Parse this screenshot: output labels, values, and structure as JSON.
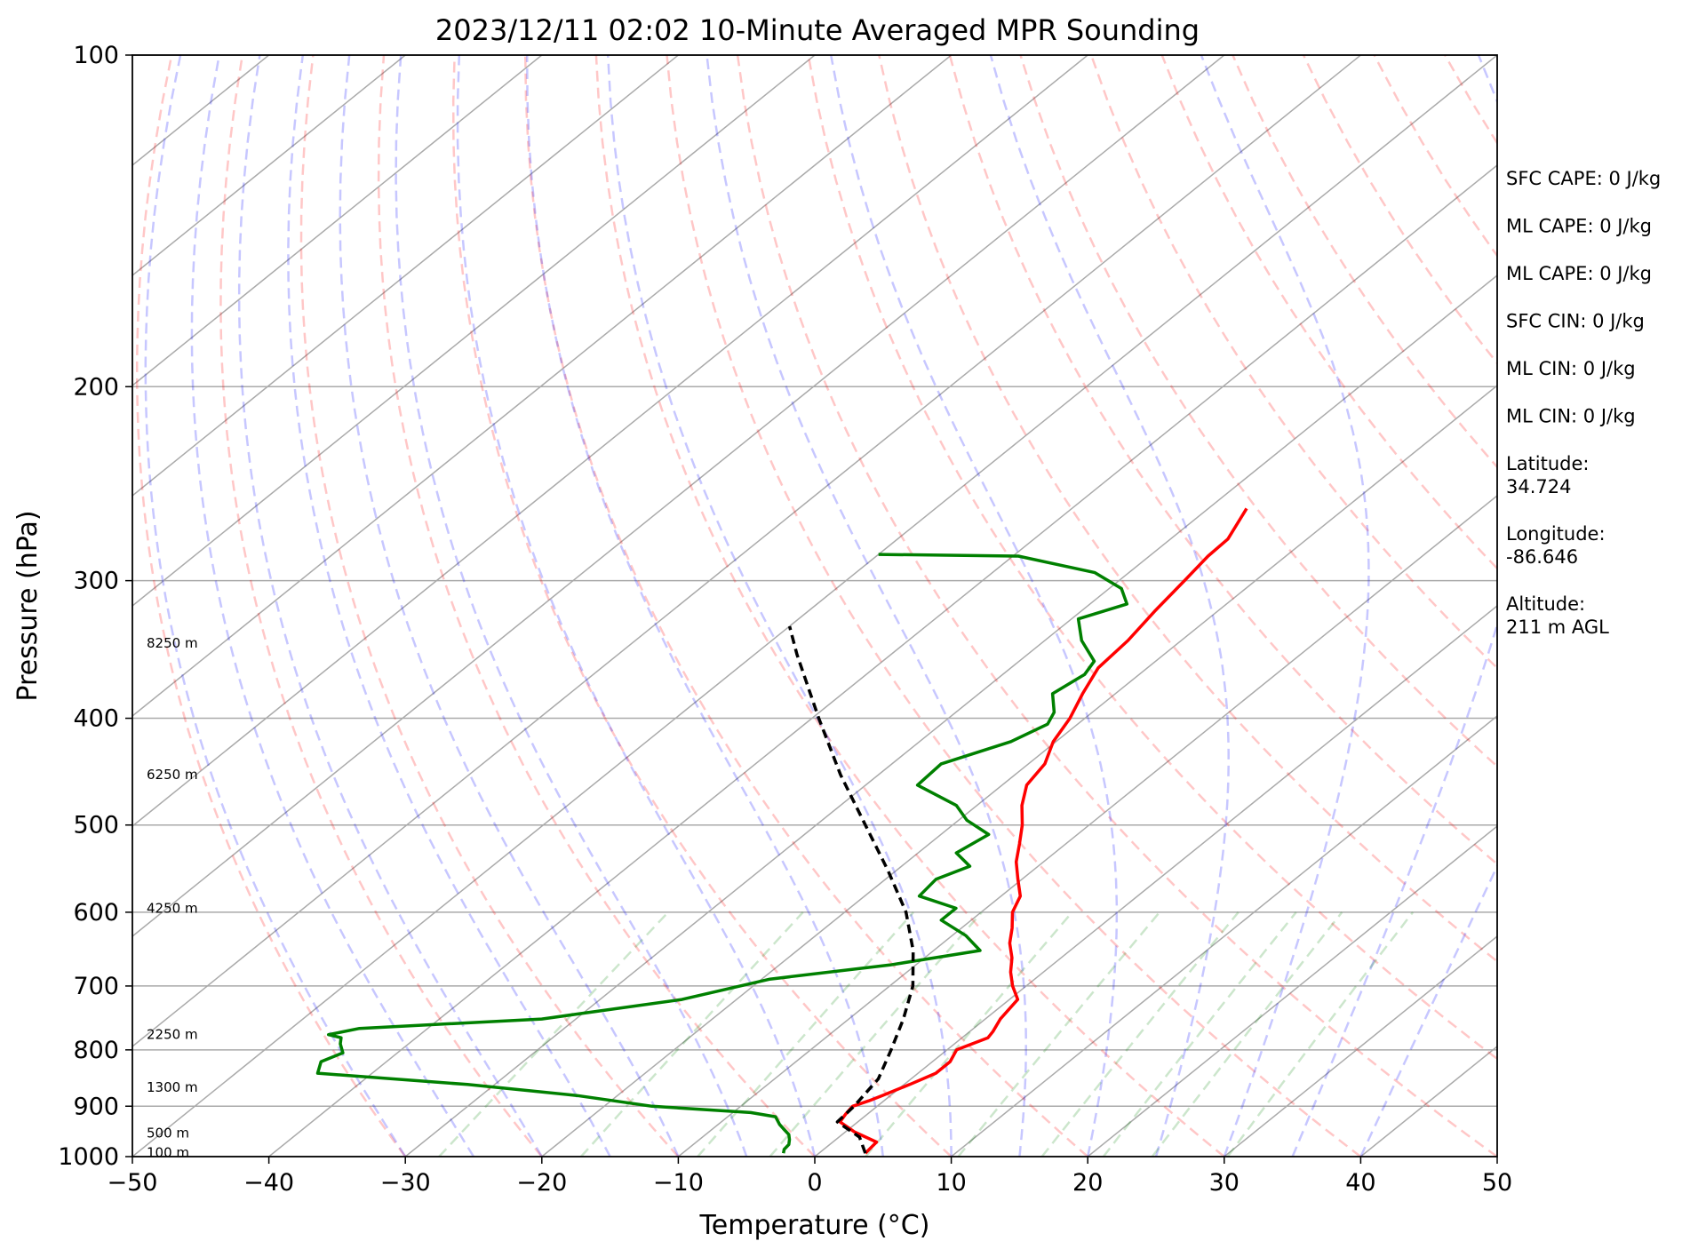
{
  "chart_data": {
    "type": "line",
    "title": "2023/12/11 02:02 10-Minute Averaged MPR Sounding",
    "xlabel": "Temperature (°C)",
    "ylabel": "Pressure (hPa)",
    "xlim": [
      -50,
      50
    ],
    "ylim": [
      1000,
      100
    ],
    "yscale": "log",
    "grid": true,
    "xticks": [
      "−50",
      "−40",
      "−30",
      "−20",
      "−10",
      "0",
      "10",
      "20",
      "30",
      "40",
      "50"
    ],
    "yticks": [
      {
        "p": 100,
        "label": "100"
      },
      {
        "p": 200,
        "label": "200"
      },
      {
        "p": 300,
        "label": "300"
      },
      {
        "p": 400,
        "label": "400"
      },
      {
        "p": 500,
        "label": "500"
      },
      {
        "p": 600,
        "label": "600"
      },
      {
        "p": 700,
        "label": "700"
      },
      {
        "p": 800,
        "label": "800"
      },
      {
        "p": 900,
        "label": "900"
      },
      {
        "p": 1000,
        "label": "1000"
      }
    ],
    "height_labels": [
      {
        "p": 342,
        "label": "8250 m"
      },
      {
        "p": 450,
        "label": "6250 m"
      },
      {
        "p": 595,
        "label": "4250 m"
      },
      {
        "p": 775,
        "label": "2250 m"
      },
      {
        "p": 865,
        "label": "1300 m"
      },
      {
        "p": 952,
        "label": "500 m"
      },
      {
        "p": 992,
        "label": "100 m"
      }
    ],
    "series": [
      {
        "color": "#ff0000",
        "points": [
          [
            993,
            3.4
          ],
          [
            970,
            3.2
          ],
          [
            950,
            0.7
          ],
          [
            930,
            -1.3
          ],
          [
            915,
            -1.6
          ],
          [
            900,
            -1.8
          ],
          [
            890,
            -1.1
          ],
          [
            880,
            -0.6
          ],
          [
            860,
            0.4
          ],
          [
            840,
            1.3
          ],
          [
            820,
            1.3
          ],
          [
            800,
            0.7
          ],
          [
            780,
            1.9
          ],
          [
            770,
            1.7
          ],
          [
            750,
            1.1
          ],
          [
            720,
            0.6
          ],
          [
            700,
            -1.0
          ],
          [
            680,
            -2.4
          ],
          [
            660,
            -3.6
          ],
          [
            640,
            -5.1
          ],
          [
            620,
            -6.3
          ],
          [
            600,
            -7.7
          ],
          [
            580,
            -8.6
          ],
          [
            560,
            -10.3
          ],
          [
            540,
            -12.0
          ],
          [
            520,
            -13.4
          ],
          [
            500,
            -14.9
          ],
          [
            480,
            -16.7
          ],
          [
            460,
            -18.2
          ],
          [
            440,
            -18.8
          ],
          [
            420,
            -20.2
          ],
          [
            400,
            -21.1
          ],
          [
            380,
            -22.4
          ],
          [
            360,
            -23.6
          ],
          [
            340,
            -23.9
          ],
          [
            320,
            -24.6
          ],
          [
            300,
            -25.2
          ],
          [
            285,
            -25.7
          ],
          [
            275,
            -25.8
          ],
          [
            258,
            -27.2
          ]
        ]
      },
      {
        "color": "#008000",
        "points": [
          [
            993,
            -2.6
          ],
          [
            985,
            -2.9
          ],
          [
            975,
            -3.0
          ],
          [
            965,
            -3.4
          ],
          [
            955,
            -3.9
          ],
          [
            945,
            -4.7
          ],
          [
            935,
            -5.5
          ],
          [
            920,
            -6.5
          ],
          [
            912,
            -8.7
          ],
          [
            900,
            -16.5
          ],
          [
            880,
            -23.0
          ],
          [
            860,
            -32.0
          ],
          [
            840,
            -44.0
          ],
          [
            820,
            -44.8
          ],
          [
            805,
            -44.0
          ],
          [
            790,
            -45.0
          ],
          [
            780,
            -45.5
          ],
          [
            775,
            -46.7
          ],
          [
            765,
            -45.0
          ],
          [
            750,
            -32.5
          ],
          [
            720,
            -24.0
          ],
          [
            690,
            -19.4
          ],
          [
            670,
            -11.9
          ],
          [
            650,
            -6.6
          ],
          [
            630,
            -9.0
          ],
          [
            610,
            -12.2
          ],
          [
            595,
            -12.2
          ],
          [
            580,
            -16.0
          ],
          [
            560,
            -16.3
          ],
          [
            545,
            -15.0
          ],
          [
            530,
            -17.2
          ],
          [
            510,
            -16.5
          ],
          [
            495,
            -19.4
          ],
          [
            480,
            -21.5
          ],
          [
            460,
            -26.2
          ],
          [
            440,
            -26.4
          ],
          [
            420,
            -23.3
          ],
          [
            405,
            -22.2
          ],
          [
            395,
            -22.8
          ],
          [
            380,
            -24.6
          ],
          [
            365,
            -24.0
          ],
          [
            355,
            -24.5
          ],
          [
            340,
            -27.3
          ],
          [
            325,
            -29.5
          ],
          [
            315,
            -27.3
          ],
          [
            305,
            -29.1
          ],
          [
            295,
            -32.5
          ],
          [
            285,
            -39.6
          ],
          [
            284,
            -50.0
          ]
        ]
      },
      {
        "color": "#000000",
        "dashed": true,
        "points": [
          [
            993,
            3.4
          ],
          [
            960,
            1.5
          ],
          [
            930,
            -1.5
          ],
          [
            900,
            -1.7
          ],
          [
            850,
            -2.4
          ],
          [
            800,
            -4.1
          ],
          [
            750,
            -6.0
          ],
          [
            700,
            -8.3
          ],
          [
            650,
            -11.5
          ],
          [
            600,
            -15.5
          ],
          [
            550,
            -20.6
          ],
          [
            500,
            -26.4
          ],
          [
            450,
            -32.8
          ],
          [
            400,
            -39.5
          ],
          [
            350,
            -46.9
          ],
          [
            330,
            -50.0
          ]
        ]
      }
    ],
    "annotations": [
      "SFC CAPE: 0 J/kg",
      "ML CAPE: 0 J/kg",
      "ML CAPE: 0 J/kg",
      "SFC CIN: 0 J/kg",
      "ML CIN: 0 J/kg",
      "ML CIN: 0 J/kg",
      "Latitude:\n34.724",
      "Longitude:\n-86.646",
      "Altitude:\n211 m AGL"
    ]
  }
}
